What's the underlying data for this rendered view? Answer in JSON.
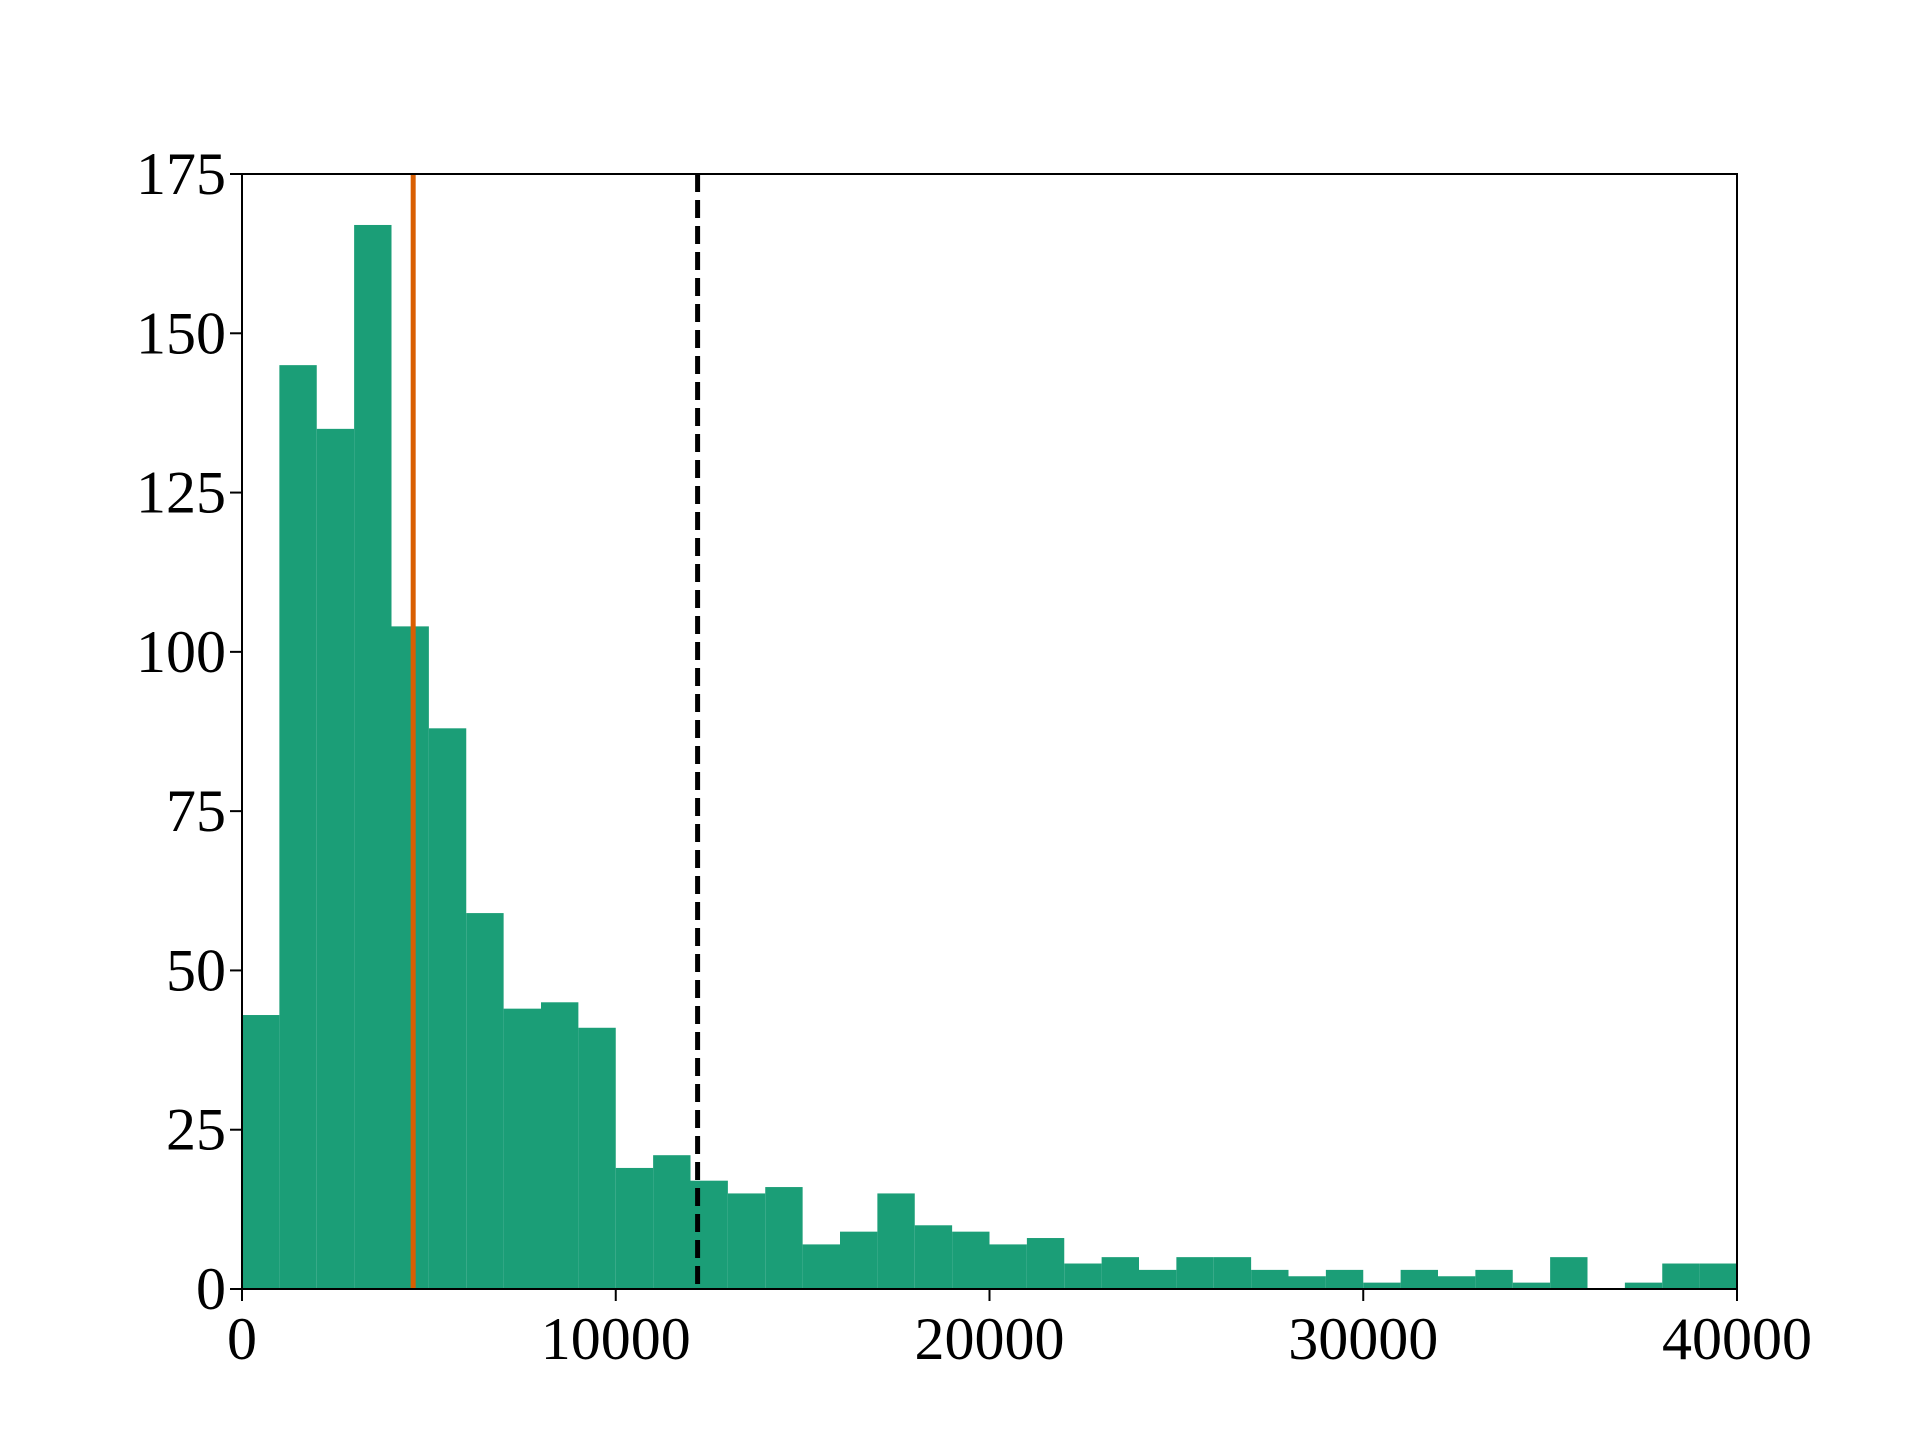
{
  "chart_data": {
    "type": "histogram",
    "bins": [
      0,
      1000,
      2000,
      3000,
      4000,
      5000,
      6000,
      7000,
      8000,
      9000,
      10000,
      11000,
      12000,
      13000,
      14000,
      15000,
      16000,
      17000,
      18000,
      19000,
      20000,
      21000,
      22000,
      23000,
      24000,
      25000,
      26000,
      27000,
      28000,
      29000,
      30000,
      31000,
      32000,
      33000,
      34000,
      35000,
      36000,
      37000,
      38000,
      39000,
      40000
    ],
    "values": [
      43,
      145,
      135,
      167,
      104,
      88,
      59,
      44,
      45,
      41,
      19,
      21,
      17,
      15,
      16,
      7,
      9,
      15,
      10,
      9,
      7,
      8,
      4,
      5,
      3,
      5,
      5,
      3,
      2,
      3,
      1,
      3,
      2,
      3,
      1,
      5,
      0,
      1,
      4,
      4
    ],
    "color": "#1b9e77",
    "vlines": [
      {
        "value": 4580,
        "color": "#d95f02",
        "style": "solid"
      },
      {
        "value": 12190,
        "color": "#000000",
        "style": "dashed"
      }
    ],
    "xlim": [
      0,
      40000
    ],
    "xticks": [
      0,
      10000,
      20000,
      30000,
      40000
    ],
    "ylim": [
      0,
      175
    ],
    "yticks": [
      0,
      25,
      50,
      75,
      100,
      125,
      150,
      175
    ],
    "grid": false
  }
}
